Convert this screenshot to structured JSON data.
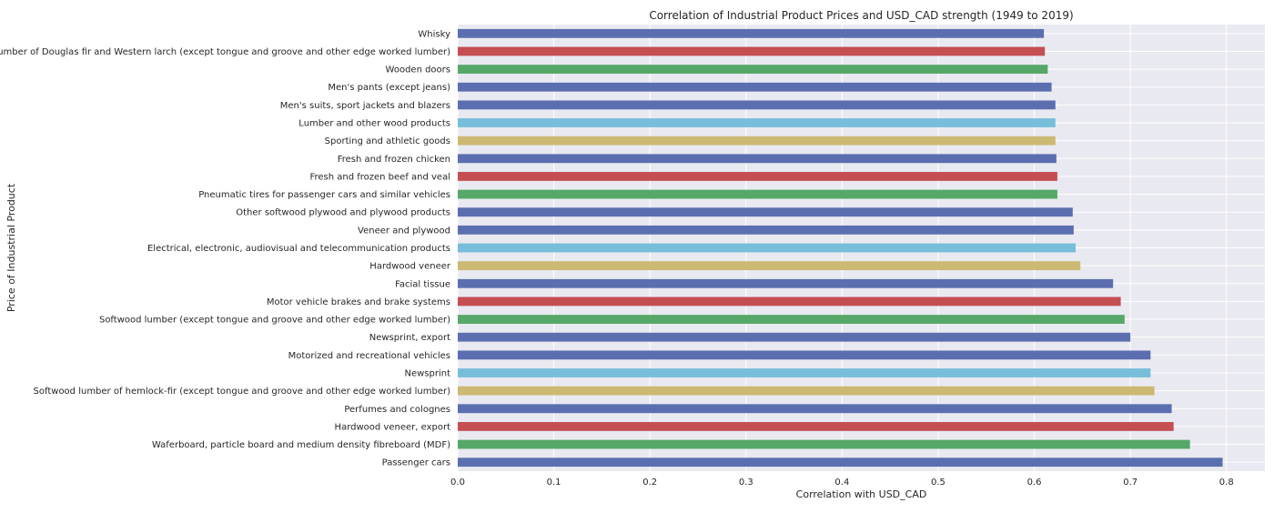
{
  "chart_data": {
    "type": "bar",
    "orientation": "horizontal",
    "title": "Correlation of Industrial Product Prices and USD_CAD strength (1949 to 2019)",
    "xlabel": "Correlation with USD_CAD",
    "ylabel": "Price of Industrial Product",
    "xlim": [
      0.0,
      0.84
    ],
    "xticks": [
      "0.0",
      "0.1",
      "0.2",
      "0.3",
      "0.4",
      "0.5",
      "0.6",
      "0.7",
      "0.8"
    ],
    "grid": true,
    "legend": "none",
    "background_color": "#e9e9f1",
    "grid_color": "#ffffff",
    "palette": [
      "#5b6fb0",
      "#c44e52",
      "#55a868",
      "#5b6fb0",
      "#5b6fb0",
      "#77bedb",
      "#ccb974"
    ],
    "categories": [
      "Whisky",
      "Softwood lumber of Douglas fir and Western larch (except tongue and groove and other edge worked lumber)",
      "Wooden doors",
      "Men's pants (except jeans)",
      "Men's suits, sport jackets and blazers",
      "Lumber and other wood products",
      "Sporting and athletic goods",
      "Fresh and frozen chicken",
      "Fresh and frozen beef and veal",
      "Pneumatic tires for passenger cars and similar vehicles",
      "Other softwood plywood and plywood products",
      "Veneer and plywood",
      "Electrical, electronic, audiovisual and telecommunication products",
      "Hardwood veneer",
      "Facial tissue",
      "Motor vehicle brakes and brake systems",
      "Softwood lumber (except tongue and groove and other edge worked lumber)",
      "Newsprint, export",
      "Motorized and recreational vehicles",
      "Newsprint",
      "Softwood lumber of hemlock-fir (except tongue and groove and other edge worked lumber)",
      "Perfumes and colognes",
      "Hardwood veneer, export",
      "Waferboard, particle board and medium density fibreboard (MDF)",
      "Passenger cars"
    ],
    "values": [
      0.61,
      0.611,
      0.614,
      0.618,
      0.622,
      0.622,
      0.622,
      0.623,
      0.624,
      0.624,
      0.64,
      0.641,
      0.643,
      0.648,
      0.682,
      0.69,
      0.694,
      0.7,
      0.721,
      0.721,
      0.725,
      0.743,
      0.745,
      0.762,
      0.796
    ],
    "colors": [
      "#5b6fb0",
      "#c44e52",
      "#55a868",
      "#5b6fb0",
      "#5b6fb0",
      "#77bedb",
      "#ccb974",
      "#5b6fb0",
      "#c44e52",
      "#55a868",
      "#5b6fb0",
      "#5b6fb0",
      "#77bedb",
      "#ccb974",
      "#5b6fb0",
      "#c44e52",
      "#55a868",
      "#5b6fb0",
      "#5b6fb0",
      "#77bedb",
      "#ccb974",
      "#5b6fb0",
      "#c44e52",
      "#55a868",
      "#5b6fb0"
    ]
  }
}
